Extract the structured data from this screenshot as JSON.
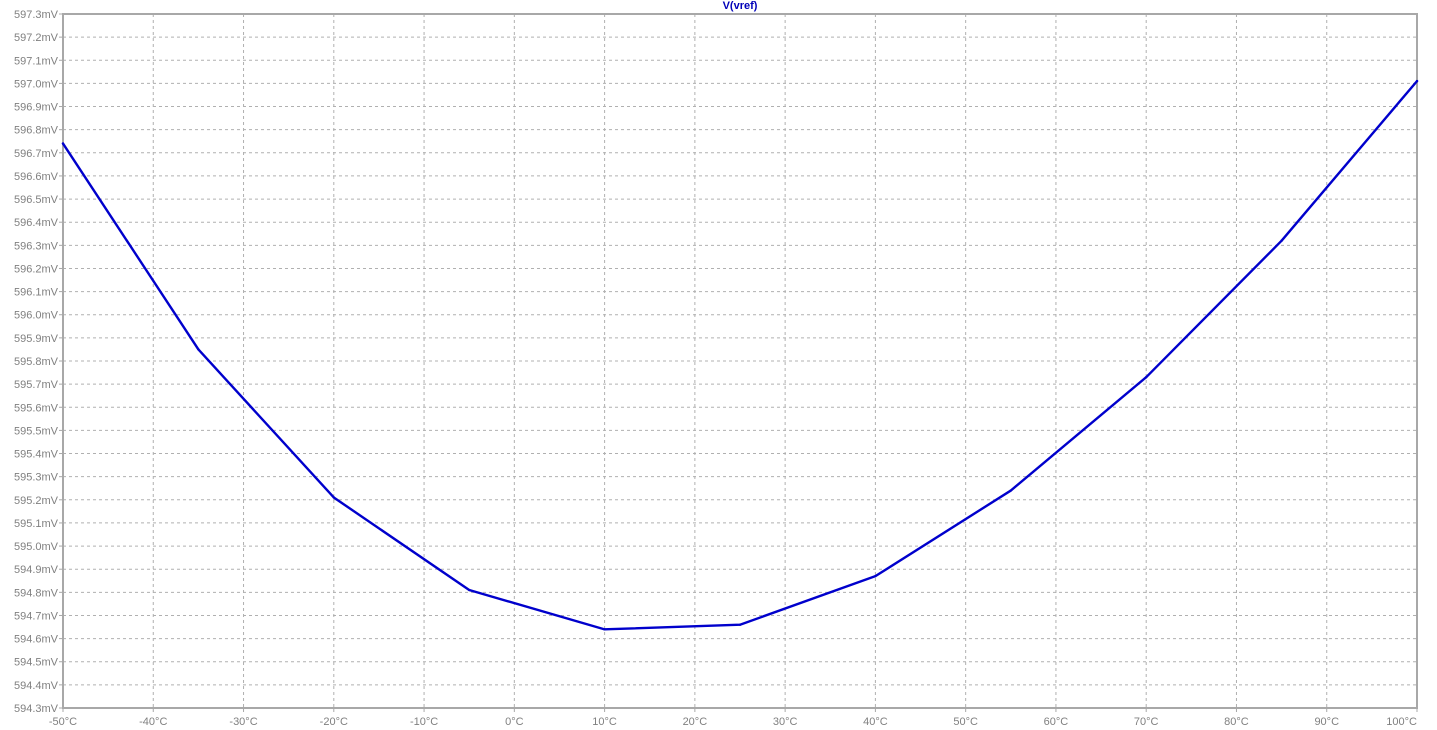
{
  "window": {
    "trace_label": "V(vref)"
  },
  "colors": {
    "trace": "#0000cc",
    "grid": "#b0b0b0",
    "frame": "#a8a8a8",
    "tick_text": "#808080",
    "background": "#ffffff"
  },
  "chart_data": {
    "type": "line",
    "title": "V(vref)",
    "xlabel": "",
    "ylabel": "",
    "xlim": [
      -50,
      100
    ],
    "ylim": [
      594.3,
      597.3
    ],
    "x_unit": "°C",
    "y_unit": "mV",
    "grid": true,
    "grid_style": "dashed",
    "x_ticks": [
      "-50°C",
      "-40°C",
      "-30°C",
      "-20°C",
      "-10°C",
      "0°C",
      "10°C",
      "20°C",
      "30°C",
      "40°C",
      "50°C",
      "60°C",
      "70°C",
      "80°C",
      "90°C",
      "100°C"
    ],
    "y_ticks": [
      "597.3mV",
      "597.2mV",
      "597.1mV",
      "597.0mV",
      "596.9mV",
      "596.8mV",
      "596.7mV",
      "596.6mV",
      "596.5mV",
      "596.4mV",
      "596.3mV",
      "596.2mV",
      "596.1mV",
      "596.0mV",
      "595.9mV",
      "595.8mV",
      "595.7mV",
      "595.6mV",
      "595.5mV",
      "595.4mV",
      "595.3mV",
      "595.2mV",
      "595.1mV",
      "595.0mV",
      "594.9mV",
      "594.8mV",
      "594.7mV",
      "594.6mV",
      "594.5mV",
      "594.4mV",
      "594.3mV"
    ],
    "series": [
      {
        "name": "V(vref)",
        "x": [
          -50,
          -35,
          -20,
          -5,
          10,
          25,
          40,
          55,
          70,
          85,
          100
        ],
        "y": [
          596.74,
          595.85,
          595.21,
          594.81,
          594.64,
          594.66,
          594.87,
          595.24,
          595.73,
          596.32,
          597.01
        ]
      }
    ]
  }
}
